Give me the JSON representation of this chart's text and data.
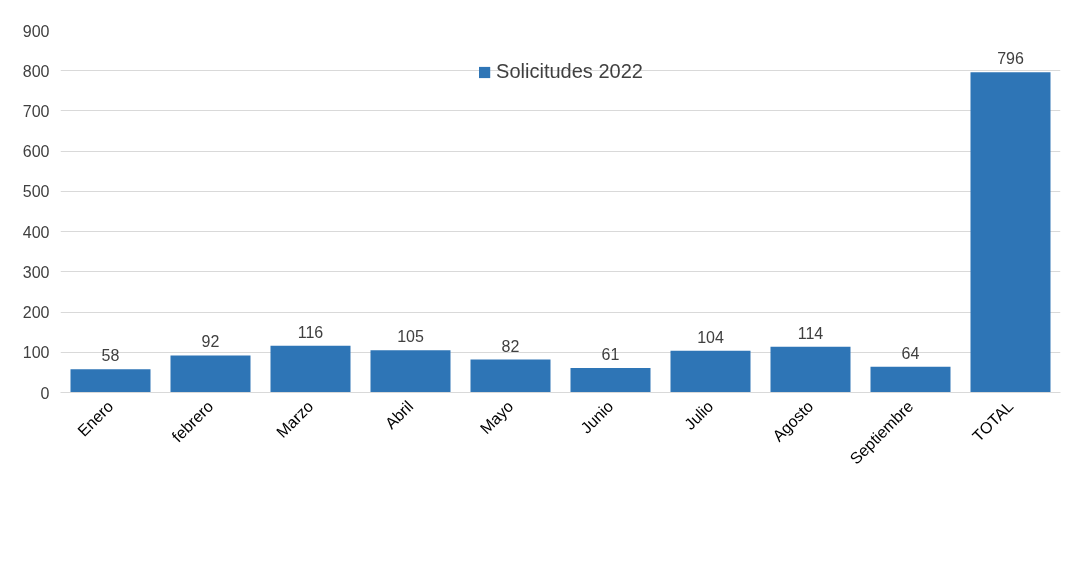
{
  "chart_data": {
    "type": "bar",
    "categories": [
      "Enero",
      "febrero",
      "Marzo",
      "Abril",
      "Mayo",
      "Junio",
      "Julio",
      "Agosto",
      "Septiembre",
      "TOTAL"
    ],
    "series": [
      {
        "name": "Solicitudes 2022",
        "color": "#2e75b6",
        "values": [
          58,
          92,
          116,
          105,
          82,
          61,
          104,
          114,
          64,
          796
        ]
      }
    ],
    "ylim": [
      0,
      900
    ],
    "yticks": [
      0,
      100,
      200,
      300,
      400,
      500,
      600,
      700,
      800,
      900
    ],
    "grid": "y",
    "data_labels": true,
    "legend": "top"
  }
}
